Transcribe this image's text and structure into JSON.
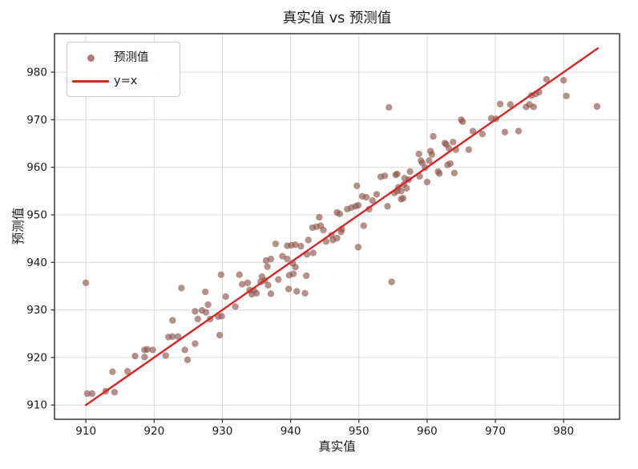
{
  "figure": {
    "background": "#ffffff"
  },
  "chart_data": {
    "type": "scatter",
    "title": "真实值 vs 预测值",
    "xlabel": "真实值",
    "ylabel": "预测值",
    "xlim": [
      905.4,
      988.2
    ],
    "ylim": [
      907.0,
      988.1
    ],
    "xticks": [
      910,
      920,
      930,
      940,
      950,
      960,
      970,
      980
    ],
    "yticks": [
      910,
      920,
      930,
      940,
      950,
      960,
      970,
      980
    ],
    "grid": true,
    "grid_color": "#d9d9d9",
    "spine_color": "#2a2a2a",
    "tick_color": "#2a2a2a",
    "text_color": "#1a1a1a",
    "legend_position": "upper left",
    "series": [
      {
        "name": "预测值",
        "type": "scatter",
        "color": "#8c564b",
        "opacity": 0.65,
        "marker_size": 4.2,
        "points": [
          [
            910.2,
            912.4
          ],
          [
            910.9,
            912.4
          ],
          [
            910.0,
            935.7
          ],
          [
            912.9,
            912.9
          ],
          [
            914.2,
            912.7
          ],
          [
            913.9,
            917.0
          ],
          [
            916.1,
            917.1
          ],
          [
            917.2,
            920.3
          ],
          [
            918.6,
            920.1
          ],
          [
            918.6,
            921.6
          ],
          [
            919.0,
            921.7
          ],
          [
            919.8,
            921.6
          ],
          [
            921.7,
            920.4
          ],
          [
            922.1,
            924.3
          ],
          [
            922.7,
            924.4
          ],
          [
            923.5,
            924.4
          ],
          [
            922.7,
            927.8
          ],
          [
            924.0,
            934.6
          ],
          [
            924.5,
            921.6
          ],
          [
            924.9,
            919.5
          ],
          [
            926.0,
            922.9
          ],
          [
            926.0,
            929.7
          ],
          [
            927.0,
            929.9
          ],
          [
            927.6,
            929.5
          ],
          [
            926.4,
            928.1
          ],
          [
            928.2,
            928.1
          ],
          [
            927.5,
            933.8
          ],
          [
            927.9,
            931.1
          ],
          [
            929.4,
            928.6
          ],
          [
            929.9,
            928.7
          ],
          [
            929.6,
            924.7
          ],
          [
            930.5,
            932.8
          ],
          [
            931.9,
            930.7
          ],
          [
            929.8,
            937.4
          ],
          [
            932.5,
            937.4
          ],
          [
            932.9,
            935.4
          ],
          [
            933.7,
            935.7
          ],
          [
            934.0,
            934.2
          ],
          [
            934.3,
            933.3
          ],
          [
            935.0,
            933.5
          ],
          [
            934.6,
            934.1
          ],
          [
            935.6,
            935.9
          ],
          [
            935.8,
            937.0
          ],
          [
            936.2,
            936.2
          ],
          [
            936.6,
            939.1
          ],
          [
            936.4,
            940.4
          ],
          [
            937.1,
            940.7
          ],
          [
            938.8,
            941.3
          ],
          [
            936.7,
            935.2
          ],
          [
            937.1,
            933.4
          ],
          [
            938.2,
            936.4
          ],
          [
            937.8,
            943.9
          ],
          [
            939.5,
            943.5
          ],
          [
            940.1,
            943.6
          ],
          [
            940.7,
            943.7
          ],
          [
            941.5,
            943.4
          ],
          [
            939.5,
            940.7
          ],
          [
            940.3,
            939.8
          ],
          [
            940.7,
            939.0
          ],
          [
            939.8,
            937.3
          ],
          [
            940.4,
            937.6
          ],
          [
            939.7,
            934.4
          ],
          [
            940.9,
            933.9
          ],
          [
            942.3,
            937.2
          ],
          [
            942.1,
            933.5
          ],
          [
            942.4,
            941.7
          ],
          [
            943.3,
            942.0
          ],
          [
            942.6,
            944.7
          ],
          [
            943.2,
            947.3
          ],
          [
            943.8,
            947.5
          ],
          [
            944.2,
            949.5
          ],
          [
            944.4,
            947.7
          ],
          [
            944.8,
            946.8
          ],
          [
            945.2,
            944.4
          ],
          [
            946.2,
            944.7
          ],
          [
            946.0,
            945.7
          ],
          [
            946.8,
            945.1
          ],
          [
            946.8,
            950.5
          ],
          [
            947.2,
            950.2
          ],
          [
            947.4,
            946.4
          ],
          [
            947.5,
            947.0
          ],
          [
            948.3,
            951.2
          ],
          [
            948.9,
            951.5
          ],
          [
            949.5,
            951.8
          ],
          [
            949.9,
            952.0
          ],
          [
            949.9,
            943.2
          ],
          [
            949.7,
            956.1
          ],
          [
            950.5,
            953.9
          ],
          [
            951.1,
            953.7
          ],
          [
            951.5,
            951.2
          ],
          [
            952.0,
            953.0
          ],
          [
            950.7,
            947.7
          ],
          [
            952.6,
            954.3
          ],
          [
            953.2,
            958.0
          ],
          [
            953.8,
            958.2
          ],
          [
            954.2,
            951.8
          ],
          [
            955.4,
            958.4
          ],
          [
            955.2,
            954.6
          ],
          [
            955.8,
            955.8
          ],
          [
            955.6,
            955.0
          ],
          [
            956.2,
            955.0
          ],
          [
            956.5,
            953.5
          ],
          [
            956.2,
            953.3
          ],
          [
            956.6,
            956.4
          ],
          [
            957.0,
            955.6
          ],
          [
            956.7,
            957.7
          ],
          [
            957.3,
            957.4
          ],
          [
            957.5,
            959.1
          ],
          [
            955.6,
            958.6
          ],
          [
            954.4,
            972.6
          ],
          [
            954.8,
            935.9
          ],
          [
            958.9,
            958.1
          ],
          [
            958.8,
            962.8
          ],
          [
            959.3,
            960.9
          ],
          [
            959.1,
            961.4
          ],
          [
            959.7,
            959.9
          ],
          [
            960.0,
            956.9
          ],
          [
            960.3,
            961.4
          ],
          [
            960.5,
            963.4
          ],
          [
            960.7,
            962.7
          ],
          [
            960.9,
            966.5
          ],
          [
            961.6,
            959.1
          ],
          [
            961.8,
            958.7
          ],
          [
            963.0,
            960.5
          ],
          [
            963.4,
            960.8
          ],
          [
            962.6,
            965.1
          ],
          [
            962.8,
            964.8
          ],
          [
            963.2,
            964.0
          ],
          [
            964.0,
            958.8
          ],
          [
            963.8,
            965.3
          ],
          [
            964.2,
            963.7
          ],
          [
            965.0,
            970.0
          ],
          [
            965.2,
            969.6
          ],
          [
            966.1,
            963.7
          ],
          [
            966.7,
            967.6
          ],
          [
            968.1,
            967.0
          ],
          [
            969.4,
            970.3
          ],
          [
            970.1,
            970.2
          ],
          [
            970.7,
            973.3
          ],
          [
            972.2,
            973.2
          ],
          [
            971.4,
            967.4
          ],
          [
            973.4,
            967.6
          ],
          [
            974.5,
            972.7
          ],
          [
            975.0,
            973.2
          ],
          [
            975.6,
            972.7
          ],
          [
            975.3,
            975.1
          ],
          [
            975.9,
            975.4
          ],
          [
            976.4,
            975.8
          ],
          [
            977.5,
            978.5
          ],
          [
            980.0,
            978.3
          ],
          [
            980.4,
            975.0
          ],
          [
            984.9,
            972.8
          ]
        ]
      },
      {
        "name": "y=x",
        "type": "line",
        "color": "#d62728",
        "width": 2.4,
        "points": [
          [
            910,
            910
          ],
          [
            985,
            985
          ]
        ]
      }
    ]
  }
}
